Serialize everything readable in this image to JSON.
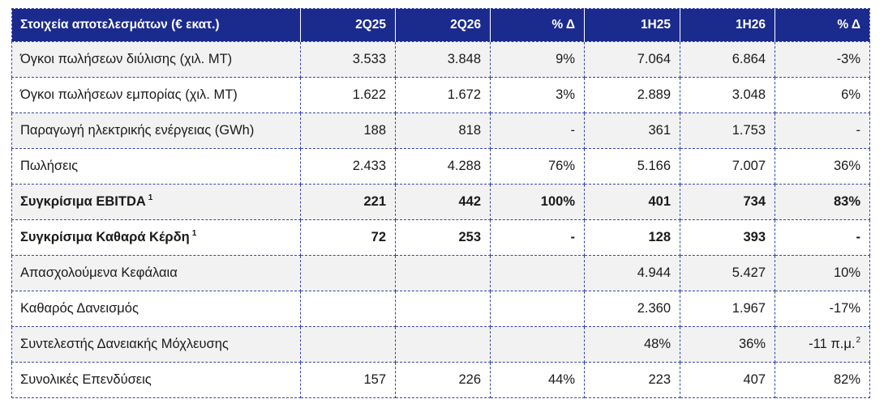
{
  "colors": {
    "header_bg": "#1b2b8d",
    "header_text": "#ffffff",
    "alt_row_bg": "#f2f2f2",
    "border": "#3444a8",
    "text": "#1a1a1a"
  },
  "table": {
    "headers": [
      "Στοιχεία αποτελεσμάτων (€ εκατ.)",
      "2Q25",
      "2Q26",
      "% Δ",
      "1H25",
      "1H26",
      "% Δ"
    ],
    "rows": [
      {
        "label": "Όγκοι πωλήσεων διύλισης (χιλ. MT)",
        "note": "",
        "bold": false,
        "values": [
          "3.533",
          "3.848",
          "9%",
          "7.064",
          "6.864",
          "-3%"
        ]
      },
      {
        "label": "Όγκοι πωλήσεων εμπορίας (χιλ. MT)",
        "note": "",
        "bold": false,
        "values": [
          "1.622",
          "1.672",
          "3%",
          "2.889",
          "3.048",
          "6%"
        ]
      },
      {
        "label": "Παραγωγή ηλεκτρικής ενέργειας (GWh)",
        "note": "",
        "bold": false,
        "values": [
          "188",
          "818",
          "-",
          "361",
          "1.753",
          "-"
        ]
      },
      {
        "label": "Πωλήσεις",
        "note": "",
        "bold": false,
        "values": [
          "2.433",
          "4.288",
          "76%",
          "5.166",
          "7.007",
          "36%"
        ]
      },
      {
        "label": "Συγκρίσιμα EBITDA",
        "note": "1",
        "bold": true,
        "values": [
          "221",
          "442",
          "100%",
          "401",
          "734",
          "83%"
        ]
      },
      {
        "label": "Συγκρίσιμα Καθαρά Κέρδη",
        "note": "1",
        "bold": true,
        "values": [
          "72",
          "253",
          "-",
          "128",
          "393",
          "-"
        ]
      },
      {
        "label": "Απασχολούμενα Κεφάλαια",
        "note": "",
        "bold": false,
        "values": [
          "",
          "",
          "",
          "4.944",
          "5.427",
          "10%"
        ]
      },
      {
        "label": "Καθαρός Δανεισμός",
        "note": "",
        "bold": false,
        "values": [
          "",
          "",
          "",
          "2.360",
          "1.967",
          "-17%"
        ]
      },
      {
        "label": "Συντελεστής Δανειακής Μόχλευσης",
        "note": "",
        "bold": false,
        "values": [
          "",
          "",
          "",
          "48%",
          "36%",
          "-11 π.μ."
        ],
        "value_note": "2"
      },
      {
        "label": "Συνολικές Επενδύσεις",
        "note": "",
        "bold": false,
        "values": [
          "157",
          "226",
          "44%",
          "223",
          "407",
          "82%"
        ]
      }
    ]
  }
}
